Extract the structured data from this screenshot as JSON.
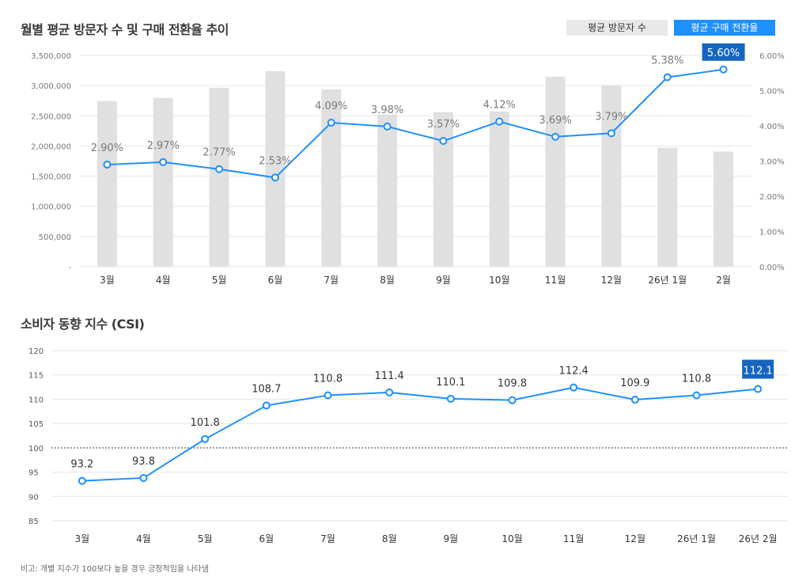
{
  "chart_data": [
    {
      "type": "bar+line",
      "title": "월별 평균 방문자 수 및 구매 전환율 추이",
      "categories": [
        "3월",
        "4월",
        "5월",
        "6월",
        "7월",
        "8월",
        "9월",
        "10월",
        "11월",
        "12월",
        "26년 1월",
        "2월"
      ],
      "legend": {
        "placement": "top-right",
        "items": [
          {
            "name": "평균 방문자 수",
            "color": "#e0e0e0"
          },
          {
            "name": "평균 구매 전환율",
            "color": "#1e90ff"
          }
        ]
      },
      "series": [
        {
          "name": "평균 방문자 수",
          "type": "bar",
          "axis": "left",
          "values": [
            2743000,
            2795000,
            2965000,
            3239000,
            2938000,
            2520000,
            2560000,
            2570000,
            3147000,
            3003000,
            1972000,
            1907000
          ]
        },
        {
          "name": "평균 구매 전환율",
          "type": "line",
          "axis": "right",
          "values": [
            2.9,
            2.97,
            2.77,
            2.53,
            4.09,
            3.98,
            3.57,
            4.12,
            3.69,
            3.79,
            5.38,
            5.6
          ],
          "labels": [
            "2.90%",
            "2.97%",
            "2.77%",
            "2.53%",
            "4.09%",
            "3.98%",
            "3.57%",
            "4.12%",
            "3.69%",
            "3.79%",
            "5.38%",
            "5.60%"
          ],
          "highlight_last": true
        }
      ],
      "y_left": {
        "ylim": [
          0,
          3500000
        ],
        "ticks": [
          0,
          500000,
          1000000,
          1500000,
          2000000,
          2500000,
          3000000,
          3500000
        ],
        "tick_labels": [
          "-",
          "500,000",
          "1,000,000",
          "1,500,000",
          "2,000,000",
          "2,500,000",
          "3,000,000",
          "3,500,000"
        ]
      },
      "y_right": {
        "ylim": [
          0,
          6
        ],
        "ticks": [
          0,
          1,
          2,
          3,
          4,
          5,
          6
        ],
        "tick_labels": [
          "0.00%",
          "1.00%",
          "2.00%",
          "3.00%",
          "4.00%",
          "5.00%",
          "6.00%"
        ]
      },
      "grid": true
    },
    {
      "type": "line",
      "title": "소비자 동향 지수 (CSI)",
      "categories": [
        "3월",
        "4월",
        "5월",
        "6월",
        "7월",
        "8월",
        "9월",
        "10월",
        "11월",
        "12월",
        "26년 1월",
        "26년 2월"
      ],
      "series": [
        {
          "name": "CSI",
          "values": [
            93.2,
            93.8,
            101.8,
            108.7,
            110.8,
            111.4,
            110.1,
            109.8,
            112.4,
            109.9,
            110.8,
            112.1
          ],
          "labels": [
            "93.2",
            "93.8",
            "101.8",
            "108.7",
            "110.8",
            "111.4",
            "110.1",
            "109.8",
            "112.4",
            "109.9",
            "110.8",
            "112.1"
          ],
          "highlight_last": true
        }
      ],
      "ylim": [
        85,
        120
      ],
      "ticks": [
        85,
        90,
        95,
        100,
        105,
        110,
        115,
        120
      ],
      "tick_labels": [
        "85",
        "90",
        "95",
        "100",
        "105",
        "110",
        "115",
        "120"
      ],
      "reference_line": 100,
      "grid": true
    }
  ],
  "note": "비고: 개별 지수가 100보다 높을 경우 긍정적임을 나타냄",
  "colors": {
    "bar": "#e0e0e0",
    "line": "#1e90ff",
    "highlight": "#1565c0",
    "grid": "#e6e6e6",
    "axis_text": "#666666",
    "label_text": "#7a7a7a"
  }
}
